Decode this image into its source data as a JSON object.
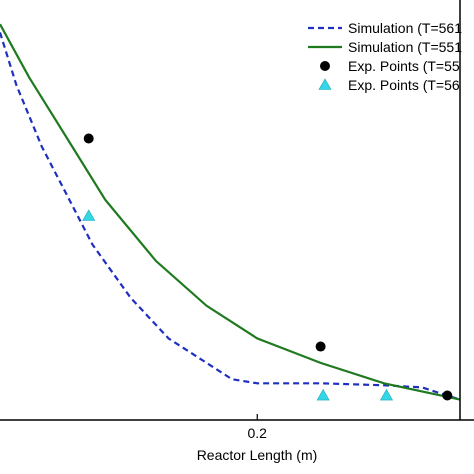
{
  "chart_data": {
    "type": "line",
    "xlabel": "Reactor Length (m)",
    "ylabel": "",
    "x_ticks": [
      0.2
    ],
    "x_tick_labels": [
      "0.2"
    ],
    "xlim": [
      -0.003,
      0.36
    ],
    "ylim": [
      0,
      1
    ],
    "grid": false,
    "legend_position": "top-right",
    "series": [
      {
        "name": "Simulation (T=561",
        "kind": "line",
        "style": "dashed",
        "color": "#1f2fbf",
        "x": [
          -0.003,
          0.01,
          0.03,
          0.05,
          0.07,
          0.1,
          0.13,
          0.16,
          0.18,
          0.2,
          0.25,
          0.3,
          0.33,
          0.36
        ],
        "y": [
          0.95,
          0.82,
          0.67,
          0.55,
          0.43,
          0.3,
          0.2,
          0.14,
          0.1,
          0.09,
          0.09,
          0.085,
          0.08,
          0.05
        ]
      },
      {
        "name": "Simulation (T=551",
        "kind": "line",
        "style": "solid",
        "color": "#1f7a1f",
        "x": [
          -0.003,
          0.02,
          0.05,
          0.08,
          0.12,
          0.16,
          0.2,
          0.25,
          0.3,
          0.36
        ],
        "y": [
          0.97,
          0.84,
          0.69,
          0.54,
          0.39,
          0.28,
          0.2,
          0.14,
          0.09,
          0.05
        ]
      },
      {
        "name": "Exp. Points (T=55",
        "kind": "scatter",
        "marker": "circle",
        "color": "#000000",
        "x": [
          0.067,
          0.25,
          0.35
        ],
        "y": [
          0.69,
          0.18,
          0.06
        ]
      },
      {
        "name": "Exp. Points (T=56",
        "kind": "scatter",
        "marker": "triangle",
        "color": "#33d6e6",
        "x": [
          0.067,
          0.252,
          0.302
        ],
        "y": [
          0.5,
          0.06,
          0.06
        ]
      }
    ]
  }
}
